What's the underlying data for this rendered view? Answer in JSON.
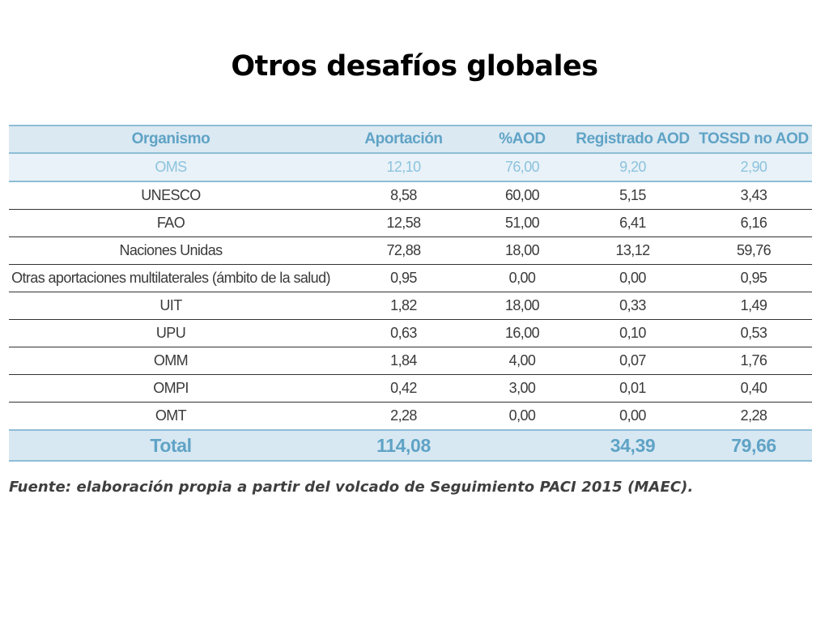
{
  "title": "Otros desafíos globales",
  "table": {
    "headers": [
      "Organismo",
      "Aportación",
      "%AOD",
      "Registrado AOD",
      "TOSSD no AOD"
    ],
    "rows": [
      [
        "OMS",
        "12,10",
        "76,00",
        "9,20",
        "2,90"
      ],
      [
        "UNESCO",
        "8,58",
        "60,00",
        "5,15",
        "3,43"
      ],
      [
        "FAO",
        "12,58",
        "51,00",
        "6,41",
        "6,16"
      ],
      [
        "Naciones Unidas",
        "72,88",
        "18,00",
        "13,12",
        "59,76"
      ],
      [
        "Otras aportaciones multilaterales (ámbito de la salud)",
        "0,95",
        "0,00",
        "0,00",
        "0,95"
      ],
      [
        "UIT",
        "1,82",
        "18,00",
        "0,33",
        "1,49"
      ],
      [
        "UPU",
        "0,63",
        "16,00",
        "0,10",
        "0,53"
      ],
      [
        "OMM",
        "1,84",
        "4,00",
        "0,07",
        "1,76"
      ],
      [
        "OMPI",
        "0,42",
        "3,00",
        "0,01",
        "0,40"
      ],
      [
        "OMT",
        "2,28",
        "0,00",
        "0,00",
        "2,28"
      ]
    ],
    "total": [
      "Total",
      "114,08",
      "",
      "34,39",
      "79,66"
    ],
    "colors": {
      "header_bg": "#dbe9f2",
      "accent_text": "#5fa3c6",
      "highlight_bg": "#e9f2f8",
      "rule": "#8dbdd6"
    }
  },
  "source": "Fuente: elaboración propia a partir del volcado de Seguimiento PACI 2015 (MAEC)."
}
